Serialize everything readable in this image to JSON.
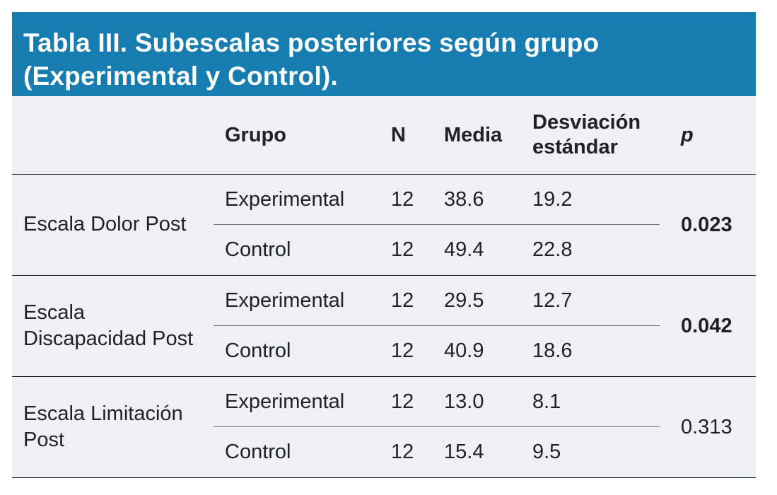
{
  "title": "Tabla III. Subescalas posteriores según grupo (Experimental y Control).",
  "columns": {
    "grupo": "Grupo",
    "n": "N",
    "media": "Media",
    "sd": "Desviación estándar",
    "p": "p"
  },
  "groups": [
    {
      "scale": "Escala Dolor Post",
      "p": "0.023",
      "p_significant": true,
      "rows": [
        {
          "grupo": "Experimental",
          "n": "12",
          "media": "38.6",
          "sd": "19.2"
        },
        {
          "grupo": "Control",
          "n": "12",
          "media": "49.4",
          "sd": "22.8"
        }
      ]
    },
    {
      "scale": "Escala Discapacidad Post",
      "p": "0.042",
      "p_significant": true,
      "rows": [
        {
          "grupo": "Experimental",
          "n": "12",
          "media": "29.5",
          "sd": "12.7"
        },
        {
          "grupo": "Control",
          "n": "12",
          "media": "40.9",
          "sd": "18.6"
        }
      ]
    },
    {
      "scale": "Escala Limitación Post",
      "p": "0.313",
      "p_significant": false,
      "rows": [
        {
          "grupo": "Experimental",
          "n": "12",
          "media": "13.0",
          "sd": "8.1"
        },
        {
          "grupo": "Control",
          "n": "12",
          "media": "15.4",
          "sd": "9.5"
        }
      ]
    }
  ],
  "colors": {
    "header_bg": "#177CB0",
    "body_bg": "#EDF1F6",
    "rule_dark": "#1A1C20",
    "rule_light": "#70757C",
    "title_text": "#FFFFFF",
    "body_text": "#1E2126"
  },
  "chart_data": {
    "type": "table",
    "title": "Tabla III. Subescalas posteriores según grupo (Experimental y Control).",
    "columns": [
      "Escala",
      "Grupo",
      "N",
      "Media",
      "Desviación estándar",
      "p"
    ],
    "rows": [
      [
        "Escala Dolor Post",
        "Experimental",
        12,
        38.6,
        19.2,
        0.023
      ],
      [
        "Escala Dolor Post",
        "Control",
        12,
        49.4,
        22.8,
        0.023
      ],
      [
        "Escala Discapacidad Post",
        "Experimental",
        12,
        29.5,
        12.7,
        0.042
      ],
      [
        "Escala Discapacidad Post",
        "Control",
        12,
        40.9,
        18.6,
        0.042
      ],
      [
        "Escala Limitación Post",
        "Experimental",
        12,
        13.0,
        8.1,
        0.313
      ],
      [
        "Escala Limitación Post",
        "Control",
        12,
        15.4,
        9.5,
        0.313
      ]
    ]
  }
}
